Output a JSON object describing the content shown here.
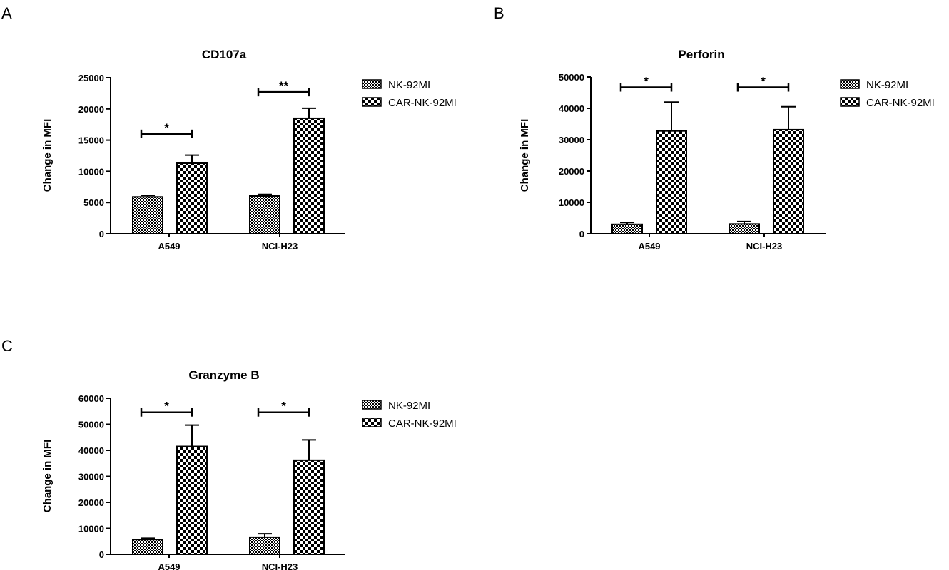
{
  "colors": {
    "ink": "#000000",
    "background": "#ffffff"
  },
  "chart_data": [
    {
      "panel": "A",
      "type": "bar",
      "title": "CD107a",
      "xlabel": "",
      "ylabel": "Change in MFI",
      "categories": [
        "A549",
        "NCI-H23"
      ],
      "ylim": [
        0,
        25000
      ],
      "yticks": [
        "0",
        "5000",
        "10000",
        "15000",
        "20000",
        "25000"
      ],
      "series": [
        {
          "name": "NK-92MI",
          "pattern": "fine-checker",
          "values": [
            5900,
            6050
          ],
          "errors": [
            250,
            250
          ]
        },
        {
          "name": "CAR-NK-92MI",
          "pattern": "coarse-checker",
          "values": [
            11300,
            18500
          ],
          "errors": [
            1300,
            1600
          ]
        }
      ],
      "significance": [
        {
          "category": "A549",
          "label": "*",
          "y": 16000
        },
        {
          "category": "NCI-H23",
          "label": "**",
          "y": 22700
        }
      ],
      "legend_position": "right",
      "grid": false
    },
    {
      "panel": "B",
      "type": "bar",
      "title": "Perforin",
      "xlabel": "",
      "ylabel": "Change in MFI",
      "categories": [
        "A549",
        "NCI-H23"
      ],
      "ylim": [
        0,
        50000
      ],
      "yticks": [
        "0",
        "10000",
        "20000",
        "30000",
        "40000",
        "50000"
      ],
      "series": [
        {
          "name": "NK-92MI",
          "pattern": "fine-checker",
          "values": [
            3000,
            3100
          ],
          "errors": [
            600,
            800
          ]
        },
        {
          "name": "CAR-NK-92MI",
          "pattern": "coarse-checker",
          "values": [
            32800,
            33200
          ],
          "errors": [
            9200,
            7300
          ]
        }
      ],
      "significance": [
        {
          "category": "A549",
          "label": "*",
          "y": 46700
        },
        {
          "category": "NCI-H23",
          "label": "*",
          "y": 46700
        }
      ],
      "legend_position": "right",
      "grid": false
    },
    {
      "panel": "C",
      "type": "bar",
      "title": "Granzyme B",
      "xlabel": "",
      "ylabel": "Change in MFI",
      "categories": [
        "A549",
        "NCI-H23"
      ],
      "ylim": [
        0,
        60000
      ],
      "yticks": [
        "0",
        "10000",
        "20000",
        "30000",
        "40000",
        "50000",
        "60000"
      ],
      "series": [
        {
          "name": "NK-92MI",
          "pattern": "fine-checker",
          "values": [
            5700,
            6600
          ],
          "errors": [
            500,
            1300
          ]
        },
        {
          "name": "CAR-NK-92MI",
          "pattern": "coarse-checker",
          "values": [
            41500,
            36200
          ],
          "errors": [
            8200,
            7800
          ]
        }
      ],
      "significance": [
        {
          "category": "A549",
          "label": "*",
          "y": 54600
        },
        {
          "category": "NCI-H23",
          "label": "*",
          "y": 54600
        }
      ],
      "legend_position": "right",
      "grid": false
    }
  ]
}
